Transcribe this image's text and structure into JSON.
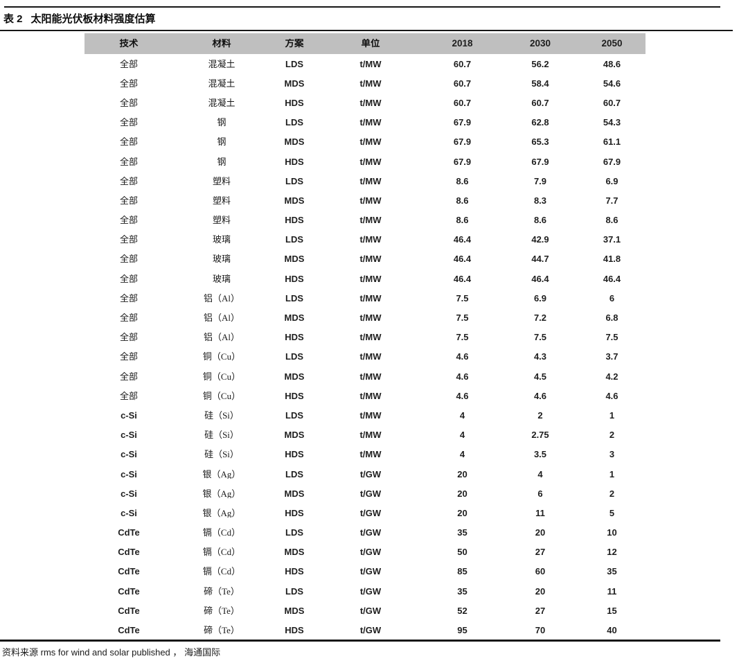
{
  "title": {
    "tag": "表 2",
    "text": "太阳能光伏板材料强度估算"
  },
  "colors": {
    "header_bg": "#bfbfbf",
    "rule": "#161616",
    "text": "#1a1a1a"
  },
  "table": {
    "columns": [
      "技术",
      "材料",
      "方案",
      "单位",
      "2018",
      "2030",
      "2050"
    ],
    "rows": [
      [
        "全部",
        "混凝土",
        "LDS",
        "t/MW",
        "60.7",
        "56.2",
        "48.6"
      ],
      [
        "全部",
        "混凝土",
        "MDS",
        "t/MW",
        "60.7",
        "58.4",
        "54.6"
      ],
      [
        "全部",
        "混凝土",
        "HDS",
        "t/MW",
        "60.7",
        "60.7",
        "60.7"
      ],
      [
        "全部",
        "钢",
        "LDS",
        "t/MW",
        "67.9",
        "62.8",
        "54.3"
      ],
      [
        "全部",
        "钢",
        "MDS",
        "t/MW",
        "67.9",
        "65.3",
        "61.1"
      ],
      [
        "全部",
        "钢",
        "HDS",
        "t/MW",
        "67.9",
        "67.9",
        "67.9"
      ],
      [
        "全部",
        "塑料",
        "LDS",
        "t/MW",
        "8.6",
        "7.9",
        "6.9"
      ],
      [
        "全部",
        "塑料",
        "MDS",
        "t/MW",
        "8.6",
        "8.3",
        "7.7"
      ],
      [
        "全部",
        "塑料",
        "HDS",
        "t/MW",
        "8.6",
        "8.6",
        "8.6"
      ],
      [
        "全部",
        "玻璃",
        "LDS",
        "t/MW",
        "46.4",
        "42.9",
        "37.1"
      ],
      [
        "全部",
        "玻璃",
        "MDS",
        "t/MW",
        "46.4",
        "44.7",
        "41.8"
      ],
      [
        "全部",
        "玻璃",
        "HDS",
        "t/MW",
        "46.4",
        "46.4",
        "46.4"
      ],
      [
        "全部",
        "铝（Al）",
        "LDS",
        "t/MW",
        "7.5",
        "6.9",
        "6"
      ],
      [
        "全部",
        "铝（Al）",
        "MDS",
        "t/MW",
        "7.5",
        "7.2",
        "6.8"
      ],
      [
        "全部",
        "铝（Al）",
        "HDS",
        "t/MW",
        "7.5",
        "7.5",
        "7.5"
      ],
      [
        "全部",
        "铜（Cu）",
        "LDS",
        "t/MW",
        "4.6",
        "4.3",
        "3.7"
      ],
      [
        "全部",
        "铜（Cu）",
        "MDS",
        "t/MW",
        "4.6",
        "4.5",
        "4.2"
      ],
      [
        "全部",
        "铜（Cu）",
        "HDS",
        "t/MW",
        "4.6",
        "4.6",
        "4.6"
      ],
      [
        "c-Si",
        "硅（Si）",
        "LDS",
        "t/MW",
        "4",
        "2",
        "1"
      ],
      [
        "c-Si",
        "硅（Si）",
        "MDS",
        "t/MW",
        "4",
        "2.75",
        "2"
      ],
      [
        "c-Si",
        "硅（Si）",
        "HDS",
        "t/MW",
        "4",
        "3.5",
        "3"
      ],
      [
        "c-Si",
        "银（Ag）",
        "LDS",
        "t/GW",
        "20",
        "4",
        "1"
      ],
      [
        "c-Si",
        "银（Ag）",
        "MDS",
        "t/GW",
        "20",
        "6",
        "2"
      ],
      [
        "c-Si",
        "银（Ag）",
        "HDS",
        "t/GW",
        "20",
        "11",
        "5"
      ],
      [
        "CdTe",
        "镉（Cd）",
        "LDS",
        "t/GW",
        "35",
        "20",
        "10"
      ],
      [
        "CdTe",
        "镉（Cd）",
        "MDS",
        "t/GW",
        "50",
        "27",
        "12"
      ],
      [
        "CdTe",
        "镉（Cd）",
        "HDS",
        "t/GW",
        "85",
        "60",
        "35"
      ],
      [
        "CdTe",
        "碲（Te）",
        "LDS",
        "t/GW",
        "35",
        "20",
        "11"
      ],
      [
        "CdTe",
        "碲（Te）",
        "MDS",
        "t/GW",
        "52",
        "27",
        "15"
      ],
      [
        "CdTe",
        "碲（Te）",
        "HDS",
        "t/GW",
        "95",
        "70",
        "40"
      ]
    ]
  },
  "footer": {
    "label": "资料来源",
    "source": "rms for wind and solar published",
    "separator": "，",
    "publisher": "海通国际"
  }
}
